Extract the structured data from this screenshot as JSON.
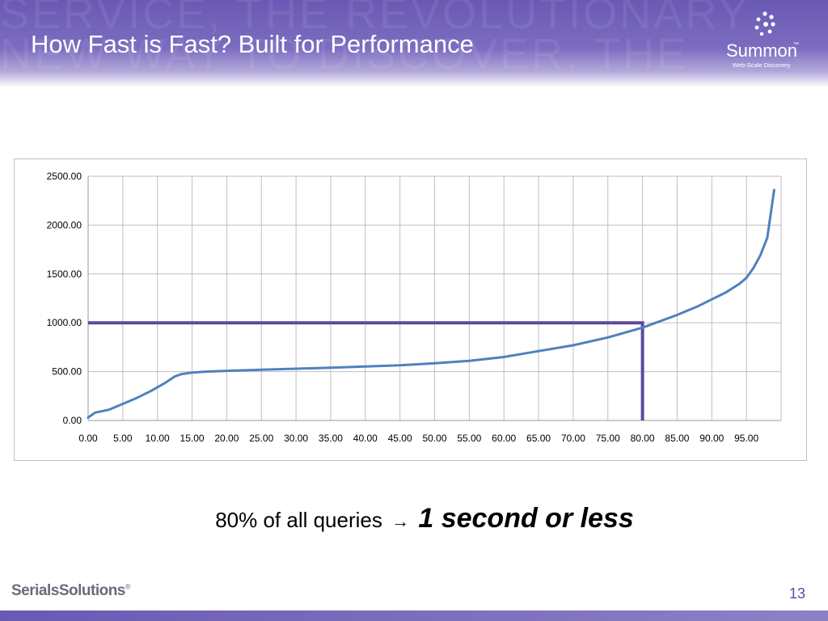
{
  "slide": {
    "title": "How Fast is Fast?  Built for Performance",
    "watermark_line1": "SERVICE, THE REVOLUTIONARY",
    "watermark_line2": "NEW WAY TO DISCOVER, THE",
    "page_number": "13"
  },
  "logo": {
    "name": "Summon",
    "tm": "™",
    "tagline": "Web-Scale Discovery"
  },
  "footer": {
    "company": "SerialsSolutions",
    "reg": "®"
  },
  "caption": {
    "prefix": "80% of all queries",
    "arrow": "→",
    "emphasis": "1 second or less"
  },
  "colors": {
    "header": "#6a59b4",
    "line": "#4f81bd",
    "highlight": "#5b4a9e",
    "grid": "#bfbfbf"
  },
  "chart_data": {
    "type": "line",
    "title": "",
    "xlabel": "",
    "ylabel": "",
    "xlim": [
      0,
      100
    ],
    "ylim": [
      0,
      2500
    ],
    "grid": true,
    "legend": "none",
    "y_ticks": [
      "0.00",
      "500.00",
      "1000.00",
      "1500.00",
      "2000.00",
      "2500.00"
    ],
    "x_ticks": [
      "0.00",
      "5.00",
      "10.00",
      "15.00",
      "20.00",
      "25.00",
      "30.00",
      "35.00",
      "40.00",
      "45.00",
      "50.00",
      "55.00",
      "60.00",
      "65.00",
      "70.00",
      "75.00",
      "80.00",
      "85.00",
      "90.00",
      "95.00"
    ],
    "series": [
      {
        "x": [
          0,
          1,
          3,
          5,
          7,
          9,
          11,
          12.5,
          13.5,
          15,
          17,
          20,
          25,
          30,
          35,
          40,
          45,
          50,
          55,
          60,
          65,
          70,
          75,
          80,
          85,
          88,
          90,
          92,
          94,
          95,
          96,
          97,
          98,
          99
        ],
        "y": [
          30,
          80,
          110,
          170,
          230,
          300,
          380,
          450,
          475,
          490,
          500,
          508,
          520,
          530,
          540,
          553,
          565,
          585,
          610,
          650,
          710,
          770,
          850,
          950,
          1080,
          1170,
          1240,
          1310,
          1400,
          1460,
          1560,
          1690,
          1870,
          2360
        ]
      }
    ],
    "reference_lines": {
      "horizontal_y": 1000,
      "horizontal_x_end": 80,
      "vertical_x": 80,
      "vertical_y_end": 1000
    }
  }
}
